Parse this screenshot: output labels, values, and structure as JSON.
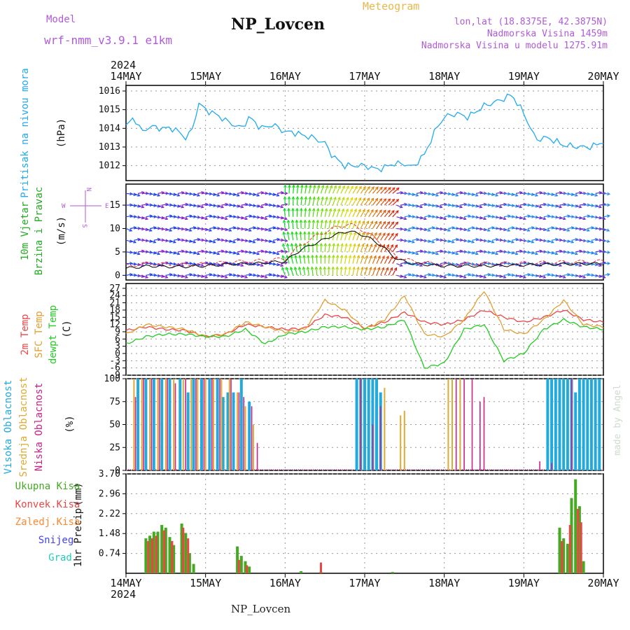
{
  "header": {
    "model_label": "Model",
    "model_name": "wrf-nmm_v3.9.1 e1km",
    "station": "NP_Lovcen",
    "product": "Meteogram",
    "coords": "lon,lat (18.8375E, 42.3875N)",
    "altitude": "Nadmorska Visina 1459m",
    "model_altitude": "Nadmorska Visina u modelu 1275.91m",
    "footer_station": "NP_Lovcen",
    "signature": "made by Angel"
  },
  "colors": {
    "pressure": "#22aaee",
    "temp2m": "#ee4444",
    "sfc": "#e0a030",
    "dew": "#22cc22",
    "cloud_high": "#22aadd",
    "cloud_mid": "#ddaa33",
    "cloud_low": "#cc2288",
    "precip_total": "#44aa22",
    "precip_conv": "#ee4444",
    "precip_frz": "#ff8833",
    "snow": "#4444ee",
    "hail": "#22ccbb"
  },
  "chart_data": [
    {
      "type": "line",
      "id": "pressure",
      "ylabel": "Pritisak na nivou mora",
      "unit": "(hPa)",
      "yticks": [
        1012,
        1013,
        1014,
        1015,
        1016
      ],
      "ylim": [
        1011.2,
        1016.3
      ],
      "x_days": [
        0,
        0.1,
        0.2,
        0.3,
        0.45,
        0.6,
        0.75,
        0.85,
        0.9,
        1.0,
        1.15,
        1.3,
        1.45,
        1.55,
        1.7,
        1.85,
        2.0,
        2.1,
        2.25,
        2.35,
        2.5,
        2.6,
        2.75,
        2.85,
        3.0,
        3.15,
        3.25,
        3.35,
        3.5,
        3.6,
        3.75,
        3.9,
        4.0,
        4.15,
        4.3,
        4.5,
        4.7,
        4.85,
        5.0,
        5.15,
        5.3,
        5.5,
        5.7,
        5.85,
        6.0
      ],
      "values": [
        1014.1,
        1014.6,
        1013.8,
        1014.1,
        1014.0,
        1014.0,
        1013.5,
        1014.0,
        1015.4,
        1015.0,
        1014.7,
        1014.3,
        1014.0,
        1014.6,
        1014.0,
        1014.2,
        1013.8,
        1013.8,
        1013.6,
        1013.5,
        1013.2,
        1012.5,
        1012.0,
        1012.0,
        1012.0,
        1011.8,
        1011.9,
        1012.1,
        1012.1,
        1011.9,
        1012.6,
        1014.0,
        1014.6,
        1014.8,
        1014.6,
        1015.2,
        1015.5,
        1015.8,
        1014.8,
        1013.4,
        1013.5,
        1013.1,
        1013.0,
        1013.0,
        1013.3
      ]
    },
    {
      "type": "vector",
      "id": "wind",
      "ylabel": "10m Vjetar Brzina i Pravac",
      "unit": "(m/s)",
      "yticks": [
        0,
        5,
        10,
        15
      ],
      "ylim": [
        -1,
        19.5
      ],
      "compass": [
        "N",
        "W",
        "E",
        "S"
      ],
      "x_days": [
        0,
        0.3,
        0.6,
        1.0,
        1.3,
        1.6,
        2.0,
        2.2,
        2.4,
        2.6,
        2.8,
        3.0,
        3.2,
        3.4,
        3.6,
        4.0,
        4.5,
        5.0,
        5.5,
        6.0
      ],
      "speed": [
        1.5,
        2.0,
        1.8,
        2.0,
        2.4,
        2.5,
        3.0,
        5.5,
        7.0,
        8.5,
        9.5,
        8.5,
        6.5,
        3.5,
        2.5,
        2.0,
        2.0,
        2.2,
        2.4,
        2.5
      ],
      "gust": [
        2.0,
        2.6,
        2.2,
        2.4,
        2.8,
        3.0,
        3.5,
        6.5,
        8.5,
        10.0,
        11.0,
        9.5,
        7.0,
        4.0,
        3.0,
        2.2,
        2.5,
        2.6,
        2.8,
        3.0
      ]
    },
    {
      "type": "line",
      "id": "temperature",
      "ylabel": [
        "2m Temp",
        "SFC Temp",
        "dewpt Temp"
      ],
      "unit": "(C)",
      "yticks": [
        -9,
        -6,
        -3,
        0,
        3,
        6,
        9,
        12,
        15,
        18,
        21,
        24,
        27
      ],
      "ylim": [
        -9,
        29
      ],
      "x_days": [
        0,
        0.25,
        0.5,
        0.75,
        1.0,
        1.25,
        1.5,
        1.75,
        2.0,
        2.25,
        2.5,
        2.75,
        3.0,
        3.25,
        3.5,
        3.75,
        4.0,
        4.25,
        4.5,
        4.75,
        5.0,
        5.25,
        5.5,
        5.75,
        6.0
      ],
      "series": [
        {
          "name": "2m Temp",
          "values": [
            9.5,
            11,
            10,
            9.5,
            7,
            8,
            12,
            11,
            10,
            10.5,
            16,
            15,
            10.5,
            13,
            17,
            13,
            12,
            14,
            18,
            15,
            13,
            15,
            18,
            14,
            13
          ]
        },
        {
          "name": "SFC Temp",
          "values": [
            8,
            12,
            11,
            10,
            7,
            8,
            13,
            11,
            9,
            10,
            22,
            18,
            10,
            14,
            24,
            8,
            7,
            14,
            26,
            10,
            8,
            14,
            22,
            12,
            11
          ]
        },
        {
          "name": "dewpt Temp",
          "values": [
            4,
            7,
            8,
            8,
            7,
            7,
            10,
            4,
            8,
            9,
            11,
            11,
            10,
            11,
            14,
            -6,
            -4,
            10,
            12,
            -3,
            0,
            10,
            14,
            11,
            10
          ]
        }
      ]
    },
    {
      "type": "bar",
      "id": "clouds",
      "ylabel": [
        "Visoka Oblacnost",
        "Srednja Oblacnost",
        "Niska Oblacnost"
      ],
      "unit": "(%)",
      "yticks": [
        0,
        25,
        50,
        75,
        100
      ],
      "ylim": [
        0,
        100
      ],
      "series": [
        {
          "name": "Visoka Oblacnost",
          "bars": [
            [
              0.15,
              100
            ],
            [
              0.25,
              100
            ],
            [
              0.35,
              100
            ],
            [
              0.45,
              100
            ],
            [
              0.55,
              100
            ],
            [
              0.68,
              100
            ],
            [
              0.78,
              85
            ],
            [
              0.85,
              100
            ],
            [
              0.95,
              100
            ],
            [
              1.05,
              100
            ],
            [
              1.15,
              100
            ],
            [
              1.22,
              80
            ],
            [
              1.28,
              85
            ],
            [
              1.35,
              85
            ],
            [
              1.45,
              100
            ],
            [
              1.55,
              75
            ],
            [
              2.9,
              100
            ],
            [
              2.95,
              100
            ],
            [
              3.0,
              100
            ],
            [
              3.05,
              100
            ],
            [
              3.1,
              100
            ],
            [
              3.15,
              100
            ],
            [
              3.2,
              85
            ],
            [
              5.3,
              100
            ],
            [
              5.35,
              100
            ],
            [
              5.4,
              100
            ],
            [
              5.45,
              100
            ],
            [
              5.5,
              100
            ],
            [
              5.55,
              100
            ],
            [
              5.6,
              100
            ],
            [
              5.65,
              85
            ],
            [
              5.7,
              100
            ],
            [
              5.75,
              100
            ],
            [
              5.8,
              100
            ],
            [
              5.85,
              100
            ],
            [
              5.9,
              100
            ],
            [
              5.95,
              100
            ]
          ]
        },
        {
          "name": "Srednja Oblacnost",
          "bars": [
            [
              0.1,
              100
            ],
            [
              0.2,
              100
            ],
            [
              0.3,
              100
            ],
            [
              0.4,
              100
            ],
            [
              0.5,
              100
            ],
            [
              0.6,
              100
            ],
            [
              0.72,
              100
            ],
            [
              0.82,
              100
            ],
            [
              0.9,
              100
            ],
            [
              1.0,
              100
            ],
            [
              1.1,
              100
            ],
            [
              1.2,
              100
            ],
            [
              1.3,
              100
            ],
            [
              1.4,
              85
            ],
            [
              1.5,
              70
            ],
            [
              1.6,
              50
            ],
            [
              3.25,
              90
            ],
            [
              3.45,
              60
            ],
            [
              3.5,
              65
            ],
            [
              4.05,
              100
            ],
            [
              4.1,
              100
            ],
            [
              4.2,
              100
            ]
          ]
        },
        {
          "name": "Niska Oblacnost",
          "bars": [
            [
              0.12,
              80
            ],
            [
              0.22,
              100
            ],
            [
              0.32,
              100
            ],
            [
              0.42,
              100
            ],
            [
              0.52,
              100
            ],
            [
              0.62,
              95
            ],
            [
              0.75,
              100
            ],
            [
              0.88,
              100
            ],
            [
              0.98,
              100
            ],
            [
              1.08,
              100
            ],
            [
              1.18,
              100
            ],
            [
              1.32,
              100
            ],
            [
              1.42,
              85
            ],
            [
              1.48,
              80
            ],
            [
              1.58,
              70
            ],
            [
              1.65,
              30
            ],
            [
              2.95,
              100
            ],
            [
              3.1,
              50
            ],
            [
              3.2,
              70
            ],
            [
              4.15,
              100
            ],
            [
              4.25,
              100
            ],
            [
              4.35,
              100
            ],
            [
              4.45,
              75
            ],
            [
              4.5,
              80
            ],
            [
              5.2,
              10
            ],
            [
              5.35,
              8
            ],
            [
              5.6,
              100
            ]
          ]
        }
      ]
    },
    {
      "type": "bar",
      "id": "precip",
      "ylabel": "1hr Precip",
      "unit": "(mm)",
      "legend": [
        "Ukupna Kisa",
        "Konvek.Kisa",
        "Zaledj.Kisa",
        "Snijeg",
        "Grad"
      ],
      "yticks": [
        0.74,
        1.48,
        2.22,
        2.96,
        3.7
      ],
      "ylim": [
        0,
        3.7
      ],
      "series": [
        {
          "name": "Ukupna Kisa",
          "bars": [
            [
              0.25,
              1.3
            ],
            [
              0.3,
              1.4
            ],
            [
              0.35,
              1.55
            ],
            [
              0.4,
              1.55
            ],
            [
              0.45,
              1.8
            ],
            [
              0.5,
              1.7
            ],
            [
              0.55,
              1.35
            ],
            [
              0.6,
              1.05
            ],
            [
              0.7,
              1.85
            ],
            [
              0.75,
              1.5
            ],
            [
              0.8,
              0.75
            ],
            [
              0.85,
              0.35
            ],
            [
              1.4,
              1.0
            ],
            [
              1.45,
              0.65
            ],
            [
              1.5,
              0.45
            ],
            [
              1.55,
              0.25
            ],
            [
              2.2,
              0.08
            ],
            [
              2.45,
              0.06
            ],
            [
              3.35,
              0.05
            ],
            [
              5.45,
              1.7
            ],
            [
              5.5,
              1.3
            ],
            [
              5.55,
              1.1
            ],
            [
              5.6,
              2.8
            ],
            [
              5.65,
              3.5
            ],
            [
              5.7,
              2.5
            ],
            [
              5.75,
              0.45
            ]
          ]
        },
        {
          "name": "Konvek.Kisa",
          "bars": [
            [
              0.28,
              1.2
            ],
            [
              0.33,
              1.3
            ],
            [
              0.38,
              1.4
            ],
            [
              0.48,
              1.6
            ],
            [
              0.58,
              1.2
            ],
            [
              0.72,
              1.7
            ],
            [
              0.78,
              1.3
            ],
            [
              1.42,
              0.5
            ],
            [
              1.52,
              0.3
            ],
            [
              2.45,
              0.4
            ],
            [
              5.48,
              1.2
            ],
            [
              5.58,
              1.8
            ],
            [
              5.68,
              2.4
            ],
            [
              5.72,
              1.9
            ]
          ]
        }
      ]
    }
  ],
  "time_axis": {
    "year": "2024",
    "labels": [
      "14MAY",
      "15MAY",
      "16MAY",
      "17MAY",
      "18MAY",
      "19MAY",
      "20MAY"
    ]
  }
}
